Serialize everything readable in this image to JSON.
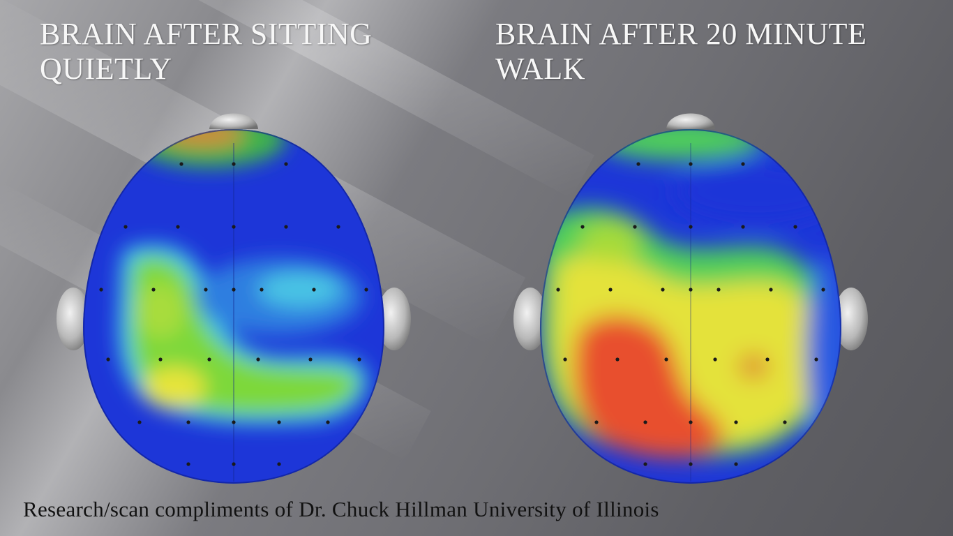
{
  "panels": [
    {
      "title_line1": "BRAIN AFTER SITTING",
      "title_line2": "QUIETLY"
    },
    {
      "title_line1": "BRAIN AFTER 20 MINUTE",
      "title_line2": "WALK"
    }
  ],
  "caption": "Research/scan  compliments of Dr. Chuck Hillman University of Illinois",
  "colors": {
    "low": "#1f3fd6",
    "mid_low": "#38b8e8",
    "mid": "#7fd13b",
    "mid_high": "#e8e43a",
    "high": "#e8502f"
  }
}
